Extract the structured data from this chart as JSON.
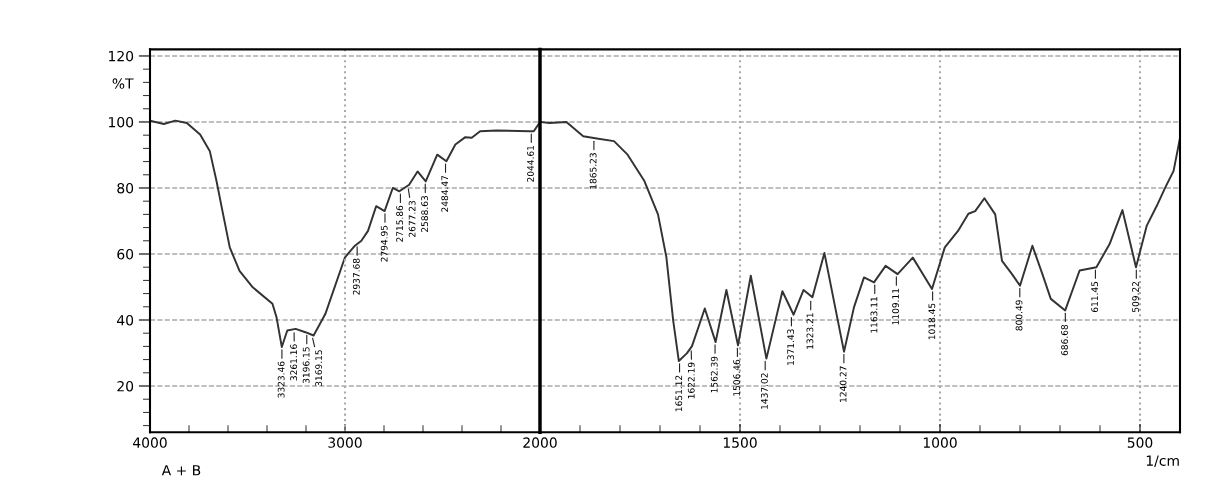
{
  "chart_data": [
    {
      "type": "line",
      "ylabel": "%T",
      "xlim": [
        4000,
        2000
      ],
      "ylim": [
        6,
        122
      ],
      "xticks": [
        4000,
        {
          "value": 3800,
          "label": null
        },
        {
          "value": 3600,
          "label": null
        },
        {
          "value": 3400,
          "label": null
        },
        {
          "value": 3200,
          "label": null
        },
        3000,
        {
          "value": 2800,
          "label": null
        },
        {
          "value": 2600,
          "label": null
        },
        {
          "value": 2400,
          "label": null
        },
        {
          "value": 2200,
          "label": null
        },
        2000
      ],
      "yticks": [
        {
          "value": 8,
          "label": null
        },
        {
          "value": 12,
          "label": null
        },
        {
          "value": 16,
          "label": null
        },
        20,
        {
          "value": 24,
          "label": null
        },
        {
          "value": 28,
          "label": null
        },
        {
          "value": 32,
          "label": null
        },
        {
          "value": 36,
          "label": null
        },
        40,
        {
          "value": 44,
          "label": null
        },
        {
          "value": 48,
          "label": null
        },
        {
          "value": 52,
          "label": null
        },
        {
          "value": 56,
          "label": null
        },
        60,
        {
          "value": 64,
          "label": null
        },
        {
          "value": 68,
          "label": null
        },
        {
          "value": 72,
          "label": null
        },
        {
          "value": 76,
          "label": null
        },
        80,
        {
          "value": 84,
          "label": null
        },
        {
          "value": 88,
          "label": null
        },
        {
          "value": 92,
          "label": null
        },
        {
          "value": 96,
          "label": null
        },
        100,
        {
          "value": 104,
          "label": null
        },
        {
          "value": 108,
          "label": null
        },
        {
          "value": 112,
          "label": null
        },
        {
          "value": 116,
          "label": null
        },
        120
      ],
      "grid": "y",
      "legend": false,
      "ref_lines": [
        {
          "axis": "x",
          "value": 3000,
          "color": "#aaaaaa",
          "line_style": "dotted"
        }
      ],
      "series": [
        {
          "color": "#333333",
          "x": [
            4000,
            3929,
            3870,
            3811,
            3743,
            3693,
            3659,
            3625,
            3591,
            3541,
            3473,
            3372,
            3351,
            3324,
            3296,
            3253,
            3203,
            3161,
            3101,
            3000,
            2949,
            2916,
            2882,
            2840,
            2797,
            2755,
            2721,
            2671,
            2628,
            2586,
            2527,
            2480,
            2434,
            2383,
            2350,
            2307,
            2223,
            2054,
            2032,
            2000
          ],
          "values": [
            100.4,
            99.4,
            100.4,
            99.7,
            96.2,
            91.1,
            82.1,
            72.0,
            62.0,
            54.9,
            49.9,
            44.9,
            40.8,
            31.8,
            36.8,
            37.3,
            36.3,
            35.3,
            41.8,
            59.0,
            62.5,
            64.0,
            67.0,
            74.5,
            73.0,
            80.0,
            79.0,
            81.0,
            85.0,
            82.0,
            90.1,
            88.1,
            93.2,
            95.4,
            95.2,
            97.2,
            97.4,
            97.2,
            97.2,
            100
          ]
        }
      ],
      "annotations": [
        "A + B",
        {
          "text": "3323.46",
          "x": 3323.46,
          "y": 31.8
        },
        {
          "text": "3261.16",
          "x": 3261.16,
          "y": 37.0
        },
        {
          "text": "3196.15",
          "x": 3196.15,
          "y": 36.2
        },
        {
          "text": "3169.15",
          "x": 3169.15,
          "y": 35.3
        },
        {
          "text": "2937.68",
          "x": 2937.68,
          "y": 63.0
        },
        {
          "text": "2794.95",
          "x": 2794.95,
          "y": 73.0
        },
        {
          "text": "2715.86",
          "x": 2715.86,
          "y": 79.0
        },
        {
          "text": "2677.23",
          "x": 2677.23,
          "y": 80.5
        },
        {
          "text": "2588.63",
          "x": 2588.63,
          "y": 82.0
        },
        {
          "text": "2484.47",
          "x": 2484.47,
          "y": 88.1
        },
        {
          "text": "2044.61",
          "x": 2044.61,
          "y": 97.2
        }
      ]
    },
    {
      "type": "line",
      "xlabel": "1/cm",
      "xlim": [
        2000,
        400
      ],
      "ylim": [
        6,
        122
      ],
      "tick_labels": "x",
      "xticks": [
        {
          "value": 2000,
          "label": null
        },
        {
          "value": 1900,
          "label": null
        },
        {
          "value": 1800,
          "label": null
        },
        {
          "value": 1700,
          "label": null
        },
        {
          "value": 1600,
          "label": null
        },
        1500,
        {
          "value": 1400,
          "label": null
        },
        {
          "value": 1300,
          "label": null
        },
        {
          "value": 1200,
          "label": null
        },
        {
          "value": 1100,
          "label": null
        },
        1000,
        {
          "value": 900,
          "label": null
        },
        {
          "value": 800,
          "label": null
        },
        {
          "value": 700,
          "label": null
        },
        {
          "value": 600,
          "label": null
        },
        500
      ],
      "yticks": [
        20,
        40,
        60,
        80,
        100,
        120
      ],
      "grid": true,
      "legend": false,
      "series": [
        {
          "color": "#333333",
          "x": [
            2000,
            1976,
            1934,
            1892,
            1858,
            1815,
            1781,
            1739,
            1705,
            1684,
            1667,
            1653,
            1633,
            1620,
            1588,
            1561,
            1534,
            1505,
            1473,
            1434,
            1394,
            1366,
            1341,
            1319,
            1289,
            1240,
            1215,
            1190,
            1165,
            1136,
            1106,
            1068,
            1020,
            988,
            955,
            929,
            912,
            889,
            862,
            845,
            820,
            800,
            769,
            744,
            723,
            687,
            651,
            609,
            576,
            544,
            510,
            483,
            458,
            437,
            416,
            400
          ],
          "values": [
            100,
            99.7,
            100,
            95.7,
            95.0,
            94.2,
            90.1,
            82.1,
            72.0,
            59.0,
            39.8,
            27.6,
            29.9,
            32.1,
            43.5,
            33.3,
            49.1,
            32.3,
            53.4,
            28.3,
            48.7,
            41.6,
            49.1,
            46.9,
            60.3,
            30.4,
            43.9,
            52.9,
            51.4,
            56.4,
            53.9,
            58.9,
            49.4,
            62.0,
            67.0,
            72.2,
            73.0,
            76.9,
            72.0,
            57.9,
            53.9,
            50.4,
            62.5,
            53.9,
            46.4,
            42.9,
            55.0,
            56.0,
            63.0,
            73.3,
            56.0,
            68.6,
            74.6,
            80.1,
            85.2,
            95.2
          ]
        }
      ],
      "annotations": [
        {
          "text": "1865.23",
          "x": 1865.23,
          "y": 95.0
        },
        {
          "text": "1651.12",
          "x": 1651.12,
          "y": 27.6
        },
        {
          "text": "1622.19",
          "x": 1622.19,
          "y": 31.5
        },
        {
          "text": "1562.39",
          "x": 1562.39,
          "y": 33.3
        },
        {
          "text": "1506.46",
          "x": 1506.46,
          "y": 32.3
        },
        {
          "text": "1437.02",
          "x": 1437.02,
          "y": 28.3
        },
        {
          "text": "1371.43",
          "x": 1371.43,
          "y": 41.6
        },
        {
          "text": "1323.21",
          "x": 1323.21,
          "y": 46.5
        },
        {
          "text": "1240.27",
          "x": 1240.27,
          "y": 30.4
        },
        {
          "text": "1163.11",
          "x": 1163.11,
          "y": 51.4
        },
        {
          "text": "1109.11",
          "x": 1109.11,
          "y": 53.9
        },
        {
          "text": "1018.45",
          "x": 1018.45,
          "y": 49.4
        },
        {
          "text": "800.49",
          "x": 800.49,
          "y": 50.4
        },
        {
          "text": "686.68",
          "x": 686.68,
          "y": 42.9
        },
        {
          "text": "611.45",
          "x": 611.45,
          "y": 56.0
        },
        {
          "text": "509.22",
          "x": 509.22,
          "y": 56.0
        }
      ]
    }
  ]
}
